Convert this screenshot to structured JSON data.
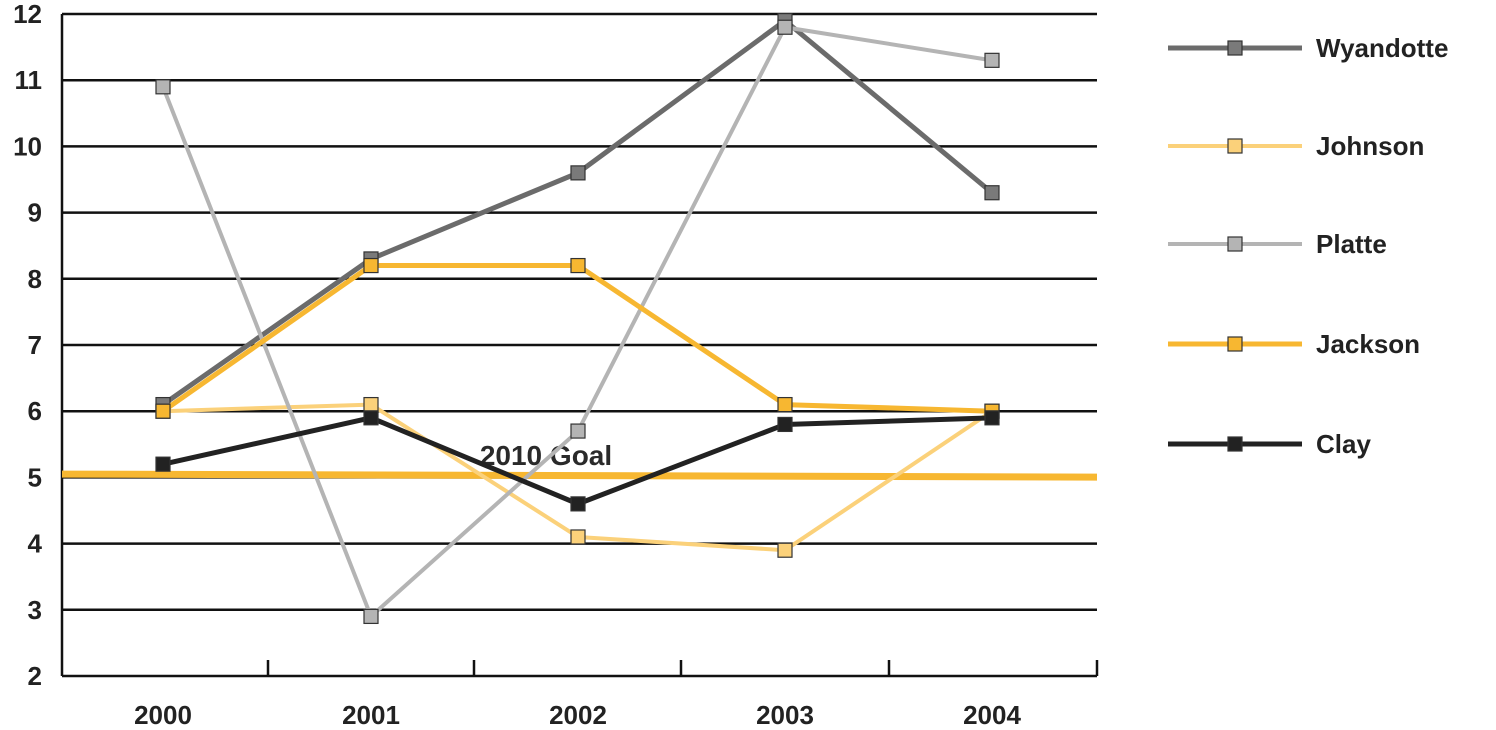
{
  "chart_data": {
    "type": "line",
    "x": [
      "2000",
      "2001",
      "2002",
      "2003",
      "2004"
    ],
    "ylim": [
      2,
      12
    ],
    "yticks": [
      2,
      3,
      4,
      5,
      6,
      7,
      8,
      9,
      10,
      11,
      12
    ],
    "grid": true,
    "legend_placement": "right",
    "series": [
      {
        "name": "Wyandotte",
        "values": [
          6.1,
          8.3,
          9.6,
          11.9,
          9.3
        ],
        "color": "#6b6b6b",
        "marker_fill": "#7a7a7a"
      },
      {
        "name": "Johnson",
        "values": [
          6.0,
          6.1,
          4.1,
          3.9,
          6.0
        ],
        "color": "#fbd17a",
        "marker_fill": "#fbd17a"
      },
      {
        "name": "Platte",
        "values": [
          10.9,
          2.9,
          5.7,
          11.8,
          11.3
        ],
        "color": "#b4b4b4",
        "marker_fill": "#b4b4b4"
      },
      {
        "name": "Jackson",
        "values": [
          6.0,
          8.2,
          8.2,
          6.1,
          6.0
        ],
        "color": "#f7b731",
        "marker_fill": "#f7b731"
      },
      {
        "name": "Clay",
        "values": [
          5.2,
          5.9,
          4.6,
          5.8,
          5.9
        ],
        "color": "#222222",
        "marker_fill": "#222222"
      }
    ],
    "goal_line": {
      "label": "2010 Goal",
      "value": 5.05,
      "color": "#f7b731"
    }
  }
}
